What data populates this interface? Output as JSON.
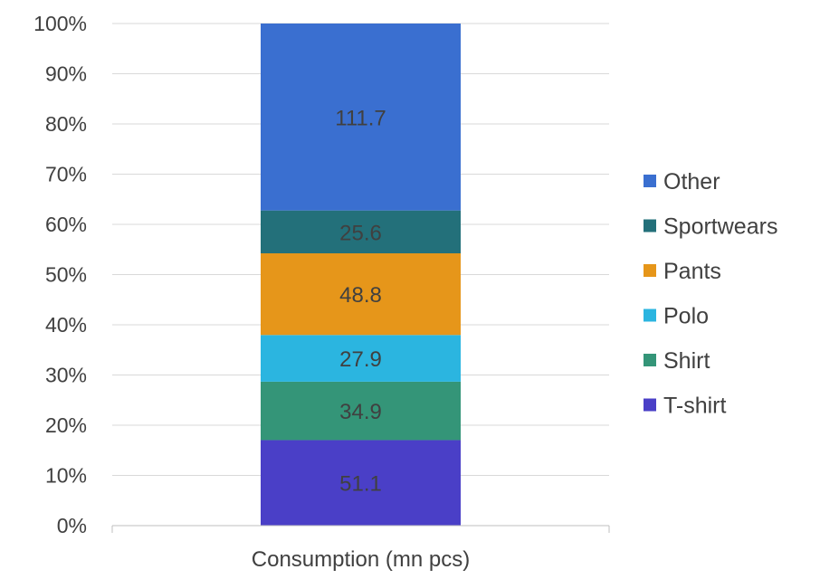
{
  "chart_data": {
    "type": "bar",
    "stacked": true,
    "normalized": true,
    "categories": [
      "Consumption (mn pcs)"
    ],
    "series": [
      {
        "name": "T-shirt",
        "values": [
          51.1
        ],
        "color": "#4a3fc7"
      },
      {
        "name": "Shirt",
        "values": [
          34.9
        ],
        "color": "#349578"
      },
      {
        "name": "Polo",
        "values": [
          27.9
        ],
        "color": "#2bb5e0"
      },
      {
        "name": "Pants",
        "values": [
          48.8
        ],
        "color": "#e6961a"
      },
      {
        "name": "Sportwears",
        "values": [
          25.6
        ],
        "color": "#23707a"
      },
      {
        "name": "Other",
        "values": [
          111.7
        ],
        "color": "#3a6fd0"
      }
    ],
    "y_ticks": [
      "0%",
      "10%",
      "20%",
      "30%",
      "40%",
      "50%",
      "60%",
      "70%",
      "80%",
      "90%",
      "100%"
    ],
    "ylim": [
      0,
      100
    ],
    "grid": true,
    "legend_position": "right",
    "title": "",
    "xlabel": "",
    "ylabel": ""
  }
}
